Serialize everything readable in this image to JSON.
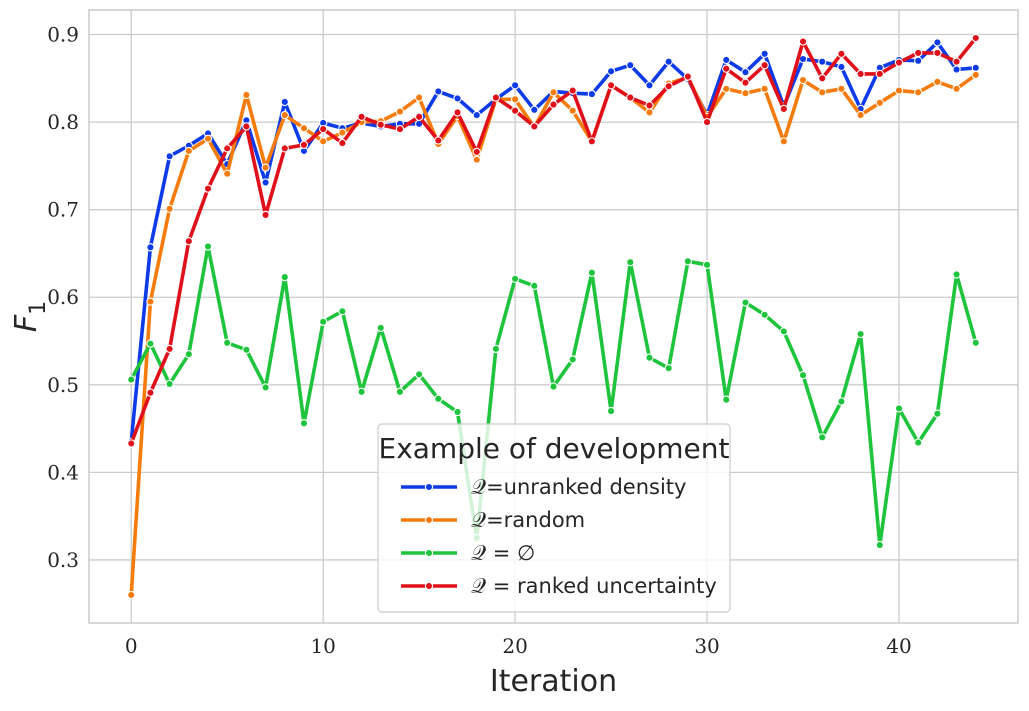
{
  "chart_data": {
    "type": "line",
    "xlabel": "Iteration",
    "ylabel": "F",
    "ylabel_subscript": "1",
    "xlim": [
      -2.2,
      46.2
    ],
    "ylim": [
      0.228,
      0.928
    ],
    "xticks": [
      0,
      10,
      20,
      30,
      40
    ],
    "yticks": [
      0.3,
      0.4,
      0.5,
      0.6,
      0.7,
      0.8,
      0.9
    ],
    "xtick_labels": [
      "0",
      "10",
      "20",
      "30",
      "40"
    ],
    "ytick_labels": [
      "0.3",
      "0.4",
      "0.5",
      "0.6",
      "0.7",
      "0.8",
      "0.9"
    ],
    "grid": true,
    "legend_title": "Example of development",
    "legend_position": "lower-center",
    "x": [
      0,
      1,
      2,
      3,
      4,
      5,
      6,
      7,
      8,
      9,
      10,
      11,
      12,
      13,
      14,
      15,
      16,
      17,
      18,
      19,
      20,
      21,
      22,
      23,
      24,
      25,
      26,
      27,
      28,
      29,
      30,
      31,
      32,
      33,
      34,
      35,
      36,
      37,
      38,
      39,
      40,
      41,
      42,
      43,
      44
    ],
    "series": [
      {
        "name": "𝒬=unranked density",
        "color": "#0d3be8",
        "values": [
          0.435,
          0.657,
          0.761,
          0.773,
          0.787,
          0.752,
          0.802,
          0.731,
          0.823,
          0.767,
          0.799,
          0.793,
          0.799,
          0.795,
          0.798,
          0.798,
          0.835,
          0.827,
          0.808,
          0.826,
          0.842,
          0.814,
          0.835,
          0.833,
          0.832,
          0.858,
          0.865,
          0.842,
          0.869,
          0.849,
          0.808,
          0.871,
          0.857,
          0.878,
          0.818,
          0.872,
          0.869,
          0.863,
          0.815,
          0.862,
          0.871,
          0.87,
          0.891,
          0.86,
          0.862
        ]
      },
      {
        "name": "𝒬=random",
        "color": "#f57c0c",
        "values": [
          0.26,
          0.595,
          0.701,
          0.767,
          0.781,
          0.741,
          0.831,
          0.748,
          0.808,
          0.793,
          0.778,
          0.788,
          0.8,
          0.801,
          0.812,
          0.828,
          0.775,
          0.807,
          0.757,
          0.826,
          0.826,
          0.794,
          0.834,
          0.813,
          0.778,
          0.842,
          0.828,
          0.811,
          0.844,
          0.851,
          0.806,
          0.838,
          0.833,
          0.838,
          0.778,
          0.848,
          0.834,
          0.838,
          0.808,
          0.822,
          0.836,
          0.834,
          0.846,
          0.838,
          0.854
        ]
      },
      {
        "name": "𝒬 = ∅",
        "color": "#1ec43c",
        "values": [
          0.506,
          0.547,
          0.501,
          0.535,
          0.658,
          0.548,
          0.54,
          0.497,
          0.623,
          0.456,
          0.572,
          0.584,
          0.492,
          0.565,
          0.492,
          0.512,
          0.484,
          0.469,
          0.325,
          0.541,
          0.621,
          0.613,
          0.498,
          0.529,
          0.628,
          0.47,
          0.64,
          0.531,
          0.519,
          0.641,
          0.637,
          0.483,
          0.594,
          0.58,
          0.561,
          0.511,
          0.44,
          0.481,
          0.558,
          0.317,
          0.473,
          0.434,
          0.467,
          0.626,
          0.548
        ]
      },
      {
        "name": "𝒬 = ranked uncertainty",
        "color": "#e0101a",
        "values": [
          0.433,
          0.491,
          0.541,
          0.664,
          0.724,
          0.77,
          0.795,
          0.694,
          0.77,
          0.774,
          0.792,
          0.776,
          0.806,
          0.797,
          0.792,
          0.806,
          0.779,
          0.811,
          0.766,
          0.828,
          0.813,
          0.795,
          0.82,
          0.836,
          0.778,
          0.842,
          0.828,
          0.819,
          0.841,
          0.852,
          0.8,
          0.861,
          0.845,
          0.865,
          0.815,
          0.892,
          0.85,
          0.878,
          0.855,
          0.855,
          0.868,
          0.879,
          0.879,
          0.869,
          0.896
        ]
      }
    ]
  }
}
